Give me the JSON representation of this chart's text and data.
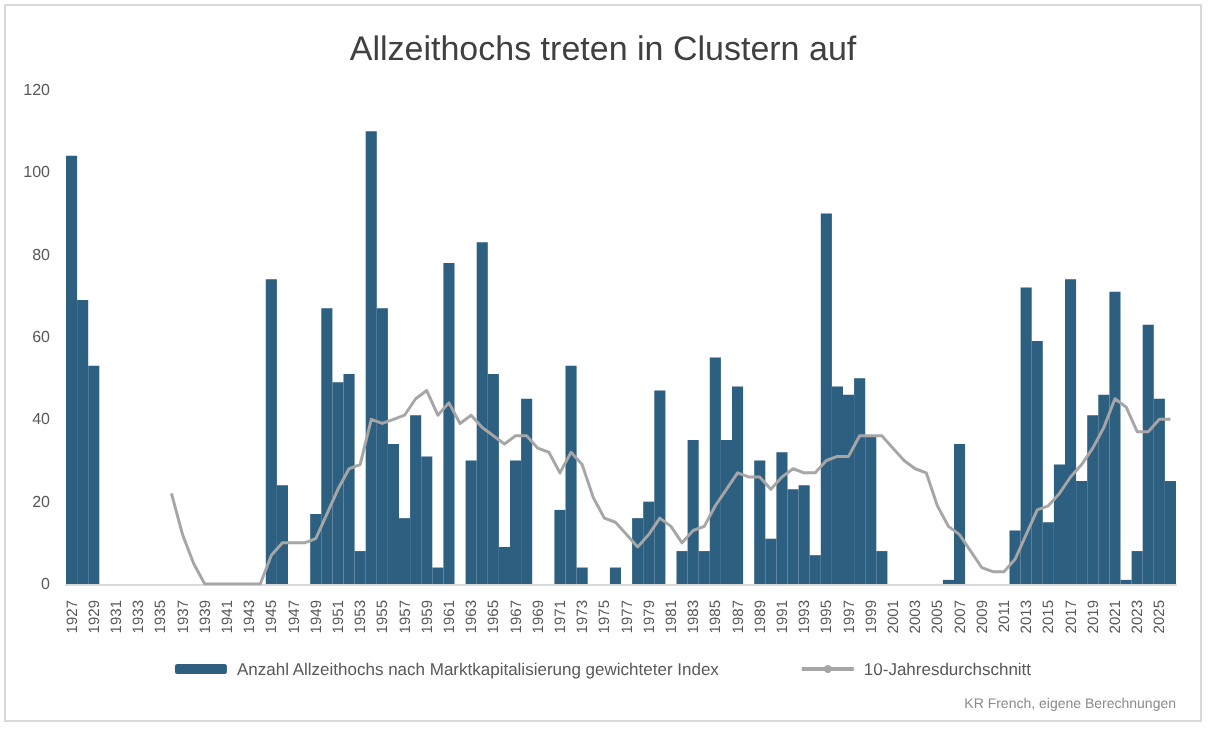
{
  "chart_data": {
    "type": "bar",
    "title": "Allzeithochs treten in Clustern auf",
    "categories": [
      "1927",
      null,
      "1929",
      null,
      "1931",
      null,
      "1933",
      null,
      "1935",
      null,
      "1937",
      null,
      "1939",
      null,
      "1941",
      null,
      "1943",
      null,
      "1945",
      null,
      "1947",
      null,
      "1949",
      null,
      "1951",
      null,
      "1953",
      null,
      "1955",
      null,
      "1957",
      null,
      "1959",
      null,
      "1961",
      null,
      "1963",
      null,
      "1965",
      null,
      "1967",
      null,
      "1969",
      null,
      "1971",
      null,
      "1973",
      null,
      "1975",
      null,
      "1977",
      null,
      "1979",
      null,
      "1981",
      null,
      "1983",
      null,
      "1985",
      null,
      "1987",
      null,
      "1989",
      null,
      "1991",
      null,
      "1993",
      null,
      "1995",
      null,
      "1997",
      null,
      "1999",
      null,
      "2001",
      null,
      "2003",
      null,
      "2005",
      null,
      "2007",
      null,
      "2009",
      null,
      "2011",
      null,
      "2013",
      null,
      "2015",
      null,
      "2017",
      null,
      "2019",
      null,
      "2021",
      null,
      "2023",
      null,
      "2025",
      null
    ],
    "series": [
      {
        "name": "Anzahl Allzeithochs nach Marktkapitalisierung gewichteter Index",
        "color": "#2d5f80",
        "values": [
          104,
          69,
          53,
          0,
          0,
          0,
          0,
          0,
          0,
          0,
          0,
          0,
          0,
          0,
          0,
          0,
          0,
          0,
          74,
          24,
          0,
          0,
          17,
          67,
          49,
          51,
          8,
          110,
          67,
          34,
          16,
          41,
          31,
          4,
          78,
          0,
          30,
          83,
          51,
          9,
          30,
          45,
          0,
          0,
          18,
          53,
          4,
          0,
          0,
          4,
          0,
          16,
          20,
          47,
          0,
          8,
          35,
          8,
          55,
          35,
          48,
          0,
          30,
          11,
          32,
          23,
          24,
          7,
          90,
          48,
          46,
          50,
          36,
          8,
          0,
          0,
          0,
          0,
          0,
          1,
          34,
          0,
          0,
          0,
          0,
          13,
          72,
          59,
          15,
          29,
          74,
          25,
          41,
          46,
          71,
          1,
          8,
          63,
          45,
          25
        ]
      },
      {
        "name": "10-Jahresdurchschnitt",
        "type": "line",
        "color": "#a6a6a6",
        "values": [
          null,
          null,
          null,
          null,
          null,
          null,
          null,
          null,
          null,
          22,
          12,
          5,
          0,
          0,
          0,
          0,
          0,
          0,
          7,
          10,
          10,
          10,
          11,
          17,
          23,
          28,
          29,
          40,
          39,
          40,
          41,
          45,
          47,
          41,
          44,
          39,
          41,
          38,
          36,
          34,
          36,
          36,
          33,
          32,
          27,
          32,
          29,
          21,
          16,
          15,
          12,
          9,
          12,
          16,
          14,
          10,
          13,
          14,
          19,
          23,
          27,
          26,
          26,
          23,
          26,
          28,
          27,
          27,
          30,
          31,
          31,
          36,
          36,
          36,
          33,
          30,
          28,
          27,
          19,
          14,
          12,
          8,
          4,
          3,
          3,
          6,
          12,
          18,
          19,
          22,
          26,
          29,
          33,
          38,
          45,
          43,
          37,
          37,
          40,
          40
        ]
      }
    ],
    "ylim": [
      0,
      120
    ],
    "yticks": [
      0,
      20,
      40,
      60,
      80,
      100,
      120
    ],
    "grid": false,
    "legend": "bottom",
    "marker": "none",
    "annotations": [
      "KR French, eigene Berechnungen"
    ]
  }
}
